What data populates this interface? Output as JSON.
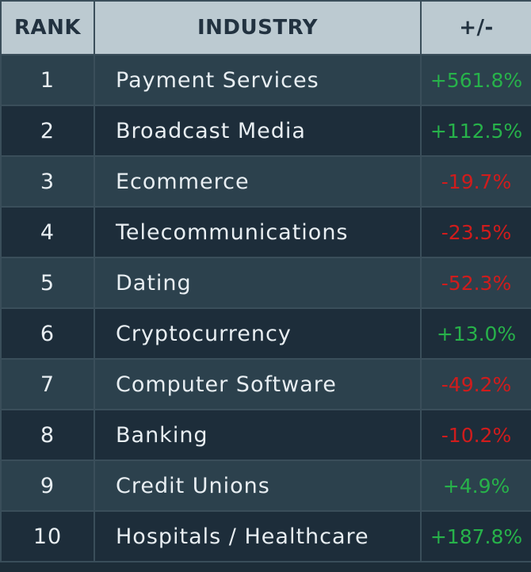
{
  "chart_data": {
    "type": "table",
    "columns": [
      "RANK",
      "INDUSTRY",
      "+/-"
    ],
    "rows": [
      {
        "rank": "1",
        "industry": "Payment Services",
        "change": "+561.8%",
        "value": 561.8
      },
      {
        "rank": "2",
        "industry": "Broadcast Media",
        "change": "+112.5%",
        "value": 112.5
      },
      {
        "rank": "3",
        "industry": "Ecommerce",
        "change": "-19.7%",
        "value": -19.7
      },
      {
        "rank": "4",
        "industry": "Telecommunications",
        "change": "-23.5%",
        "value": -23.5
      },
      {
        "rank": "5",
        "industry": "Dating",
        "change": "-52.3%",
        "value": -52.3
      },
      {
        "rank": "6",
        "industry": "Cryptocurrency",
        "change": "+13.0%",
        "value": 13.0
      },
      {
        "rank": "7",
        "industry": "Computer Software",
        "change": "-49.2%",
        "value": -49.2
      },
      {
        "rank": "8",
        "industry": "Banking",
        "change": "-10.2%",
        "value": -10.2
      },
      {
        "rank": "9",
        "industry": "Credit Unions",
        "change": "+4.9%",
        "value": 4.9
      },
      {
        "rank": "10",
        "industry": "Hospitals / Healthcare",
        "change": "+187.8%",
        "value": 187.8
      }
    ]
  },
  "colors": {
    "header_bg": "#bccad1",
    "row_odd": "#2c414d",
    "row_even": "#1d2d3a",
    "positive": "#27b24a",
    "negative": "#d01c1c"
  }
}
